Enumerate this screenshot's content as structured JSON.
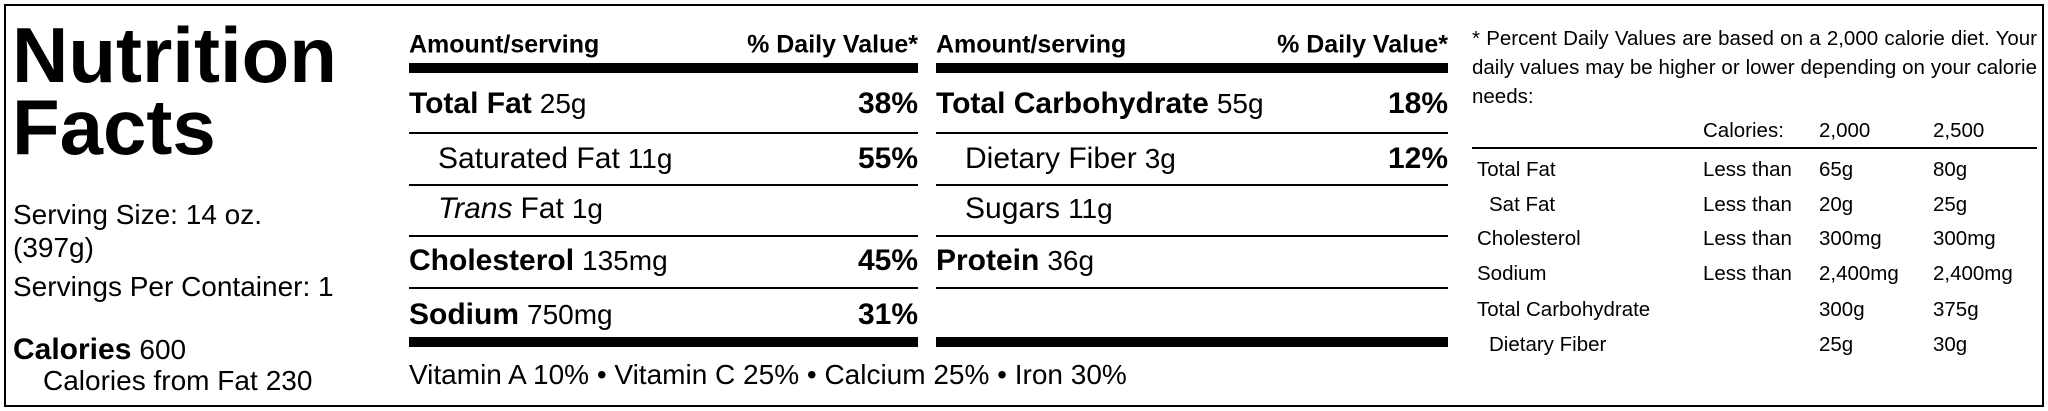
{
  "title_lines": [
    "Nutrition",
    "Facts"
  ],
  "serving_lines": [
    "Serving Size: 14 oz.",
    "(397g)",
    "Servings Per Container: 1"
  ],
  "calories": {
    "label": "Calories",
    "value": "600"
  },
  "calories_from_fat": {
    "label": "Calories from Fat",
    "value": "230"
  },
  "panels": [
    {
      "header_left": "Amount/serving",
      "header_right": "% Daily Value*",
      "rows": [
        {
          "label": "Total Fat",
          "amount": "25g",
          "dv": "38%",
          "bold": true
        },
        {
          "label": "Saturated Fat",
          "amount": "11g",
          "dv": "55%",
          "bold": false
        },
        {
          "label_italic": "Trans",
          "label": "Fat",
          "amount": "1g",
          "bold": false
        },
        {
          "label": "Cholesterol",
          "amount": "135mg",
          "dv": "45%",
          "bold": true
        },
        {
          "label": "Sodium",
          "amount": "750mg",
          "dv": "31%",
          "bold": true
        }
      ]
    },
    {
      "header_left": "Amount/serving",
      "header_right": "% Daily Value*",
      "rows": [
        {
          "label": "Total Carbohydrate",
          "amount": "55g",
          "dv": "18%",
          "bold": true
        },
        {
          "label": "Dietary Fiber",
          "amount": "3g",
          "dv": "12%",
          "bold": false
        },
        {
          "label": "Sugars",
          "amount": "11g",
          "bold": false
        },
        {
          "label": "Protein",
          "amount": "36g",
          "bold": true
        }
      ]
    }
  ],
  "vitamins": "Vitamin A 10% • Vitamin C 25% • Calcium 25% • Iron 30%",
  "footnote": "* Percent Daily Values are based on a 2,000 calorie diet. Your daily values may be higher or lower depending on your calorie needs:",
  "daily_table": {
    "header": [
      "Calories:",
      "2,000",
      "2,500"
    ],
    "rows": [
      {
        "label": "Total Fat",
        "qualifier": "Less than",
        "v1": "65g",
        "v2": "80g",
        "indent": false
      },
      {
        "label": "Sat Fat",
        "qualifier": "Less than",
        "v1": "20g",
        "v2": "25g",
        "indent": true
      },
      {
        "label": "Cholesterol",
        "qualifier": "Less than",
        "v1": "300mg",
        "v2": "300mg",
        "indent": false
      },
      {
        "label": "Sodium",
        "qualifier": "Less than",
        "v1": "2,400mg",
        "v2": "2,400mg",
        "indent": false
      },
      {
        "label": "Total Carbohydrate",
        "v1": "300g",
        "v2": "375g",
        "indent": false
      },
      {
        "label": "Dietary Fiber",
        "v1": "25g",
        "v2": "30g",
        "indent": true
      }
    ]
  }
}
